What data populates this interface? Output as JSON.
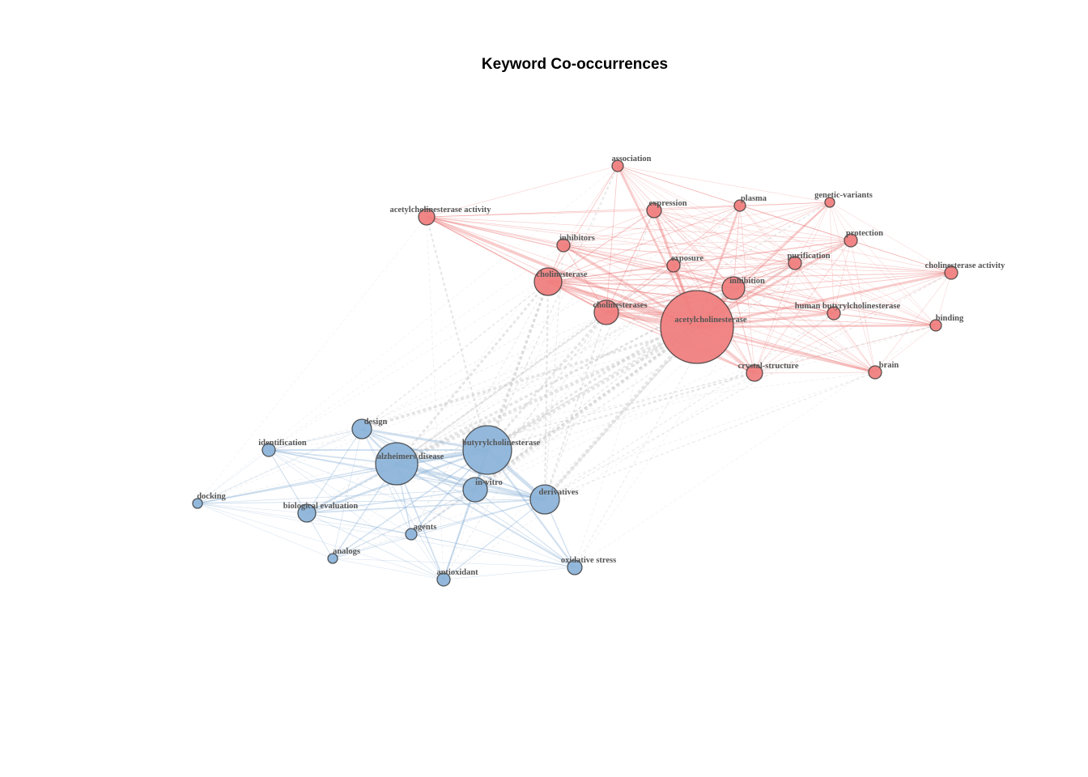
{
  "title": "Keyword Co-occurrences",
  "nodes": [
    {
      "label": "association",
      "color": "#f08080"
    },
    {
      "label": "expression",
      "color": "#f08080"
    },
    {
      "label": "plasma",
      "color": "#f08080"
    },
    {
      "label": "genetic-variants",
      "color": "#f08080"
    },
    {
      "label": "acetylcholinesterase activity",
      "color": "#f08080"
    },
    {
      "label": "inhibitors",
      "color": "#f08080"
    },
    {
      "label": "protection",
      "color": "#f08080"
    },
    {
      "label": "exposure",
      "color": "#f08080"
    },
    {
      "label": "purification",
      "color": "#f08080"
    },
    {
      "label": "cholinesterase activity",
      "color": "#f08080"
    },
    {
      "label": "cholinesterase",
      "color": "#f08080"
    },
    {
      "label": "inhibition",
      "color": "#f08080"
    },
    {
      "label": "cholinesterases",
      "color": "#f08080"
    },
    {
      "label": "human butyrylcholinesterase",
      "color": "#f08080"
    },
    {
      "label": "acetylcholinesterase",
      "color": "#f08080"
    },
    {
      "label": "binding",
      "color": "#f08080"
    },
    {
      "label": "crystal-structure",
      "color": "#f08080"
    },
    {
      "label": "brain",
      "color": "#f08080"
    },
    {
      "label": "design",
      "color": "#8db4d9"
    },
    {
      "label": "identification",
      "color": "#8db4d9"
    },
    {
      "label": "butyrylcholinesterase",
      "color": "#8db4d9"
    },
    {
      "label": "alzheimers disease",
      "color": "#8db4d9"
    },
    {
      "label": "in-vitro",
      "color": "#8db4d9"
    },
    {
      "label": "derivatives",
      "color": "#8db4d9"
    },
    {
      "label": "docking",
      "color": "#8db4d9"
    },
    {
      "label": "biological evaluation",
      "color": "#8db4d9"
    },
    {
      "label": "agents",
      "color": "#8db4d9"
    },
    {
      "label": "analogs",
      "color": "#8db4d9"
    },
    {
      "label": "antioxidant",
      "color": "#8db4d9"
    },
    {
      "label": "oxidative stress",
      "color": "#8db4d9"
    }
  ]
}
